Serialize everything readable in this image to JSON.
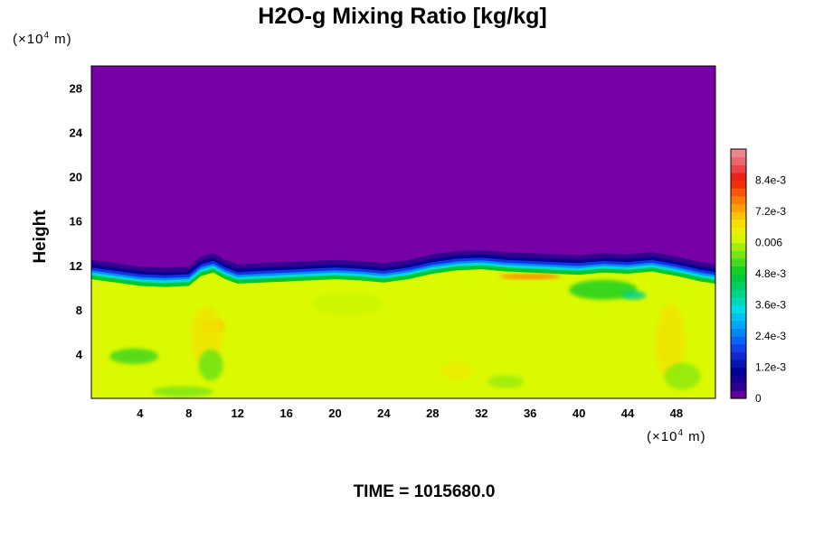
{
  "chart_data": {
    "type": "heatmap",
    "title": "H2O-g Mixing Ratio [kg/kg]",
    "ylabel": "Height",
    "y_unit_prefix": "(×10",
    "y_unit_exp": "4",
    "y_unit_suffix": " m)",
    "x_unit_prefix": "(×10",
    "x_unit_exp": "4",
    "x_unit_suffix": " m)",
    "time_label": "TIME = 1015680.0",
    "xlim": [
      0,
      51.2
    ],
    "ylim": [
      0,
      30
    ],
    "x_ticks": [
      4,
      8,
      12,
      16,
      20,
      24,
      28,
      32,
      36,
      40,
      44,
      48
    ],
    "y_ticks": [
      4,
      8,
      12,
      16,
      20,
      24,
      28
    ],
    "colorbar": {
      "min": 0,
      "max": 0.0096,
      "tick_values": [
        0,
        0.0012,
        0.0024,
        0.0036,
        0.0048,
        0.006,
        0.0072,
        0.0084
      ],
      "tick_labels": [
        "0",
        "1.2e-3",
        "2.4e-3",
        "3.6e-3",
        "4.8e-3",
        "0.006",
        "7.2e-3",
        "8.4e-3"
      ],
      "levels": 32
    },
    "background_value": 0,
    "moist_value": 0.0062,
    "interface_height": [
      [
        0,
        11.2
      ],
      [
        2,
        10.9
      ],
      [
        4,
        10.6
      ],
      [
        6,
        10.5
      ],
      [
        8,
        10.6
      ],
      [
        9,
        11.5
      ],
      [
        10,
        11.8
      ],
      [
        11,
        11.2
      ],
      [
        12,
        10.8
      ],
      [
        14,
        10.9
      ],
      [
        16,
        11.0
      ],
      [
        18,
        11.1
      ],
      [
        20,
        11.2
      ],
      [
        22,
        11.1
      ],
      [
        24,
        10.9
      ],
      [
        26,
        11.2
      ],
      [
        28,
        11.7
      ],
      [
        30,
        12.0
      ],
      [
        32,
        12.1
      ],
      [
        34,
        11.9
      ],
      [
        36,
        11.8
      ],
      [
        38,
        11.7
      ],
      [
        40,
        11.6
      ],
      [
        42,
        11.8
      ],
      [
        44,
        11.7
      ],
      [
        46,
        11.9
      ],
      [
        48,
        11.5
      ],
      [
        50,
        11.0
      ],
      [
        51.2,
        10.8
      ]
    ],
    "features": [
      {
        "x": 3.5,
        "y": 3.8,
        "rx": 2.0,
        "ry": 0.7,
        "value": 0.0052
      },
      {
        "x": 10.0,
        "y": 6.5,
        "rx": 0.9,
        "ry": 0.6,
        "value": 0.0072
      },
      {
        "x": 9.5,
        "y": 5.5,
        "rx": 1.3,
        "ry": 2.8,
        "value": 0.0066
      },
      {
        "x": 9.8,
        "y": 3.0,
        "rx": 1.0,
        "ry": 1.4,
        "value": 0.0055
      },
      {
        "x": 7.5,
        "y": 0.6,
        "rx": 2.5,
        "ry": 0.5,
        "value": 0.0056
      },
      {
        "x": 30.0,
        "y": 2.5,
        "rx": 1.2,
        "ry": 0.8,
        "value": 0.0065
      },
      {
        "x": 34.0,
        "y": 1.5,
        "rx": 1.5,
        "ry": 0.6,
        "value": 0.0058
      },
      {
        "x": 42.0,
        "y": 9.8,
        "rx": 2.8,
        "ry": 0.9,
        "value": 0.005
      },
      {
        "x": 44.5,
        "y": 9.3,
        "rx": 1.0,
        "ry": 0.4,
        "value": 0.004
      },
      {
        "x": 47.5,
        "y": 5.0,
        "rx": 1.2,
        "ry": 3.5,
        "value": 0.0066
      },
      {
        "x": 48.5,
        "y": 2.0,
        "rx": 1.5,
        "ry": 1.2,
        "value": 0.0057
      },
      {
        "x": 21.0,
        "y": 8.5,
        "rx": 3.0,
        "ry": 1.0,
        "value": 0.0061
      },
      {
        "x": 36.0,
        "y": 11.0,
        "rx": 2.5,
        "ry": 0.25,
        "value": 0.0076
      }
    ]
  }
}
